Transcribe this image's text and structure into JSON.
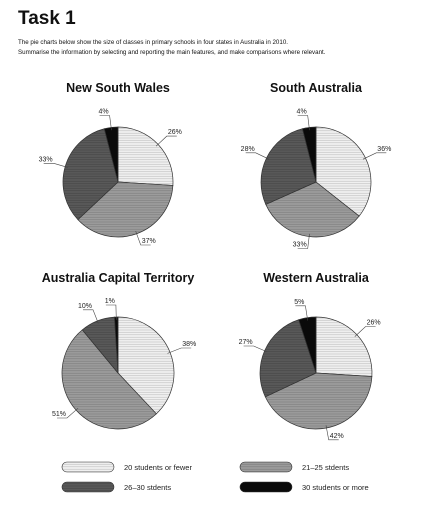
{
  "header": {
    "title": "Task 1",
    "line1": "The pie charts below show the size of classes in primary schools in four states in Australia in 2010.",
    "line2": "Summarise the information by selecting and reporting the main features, and make comparisons where relevant."
  },
  "legend": [
    {
      "label": "20 students or fewer",
      "pattern": "light-hatch"
    },
    {
      "label": "21–25 stdents",
      "pattern": "medium-hatch"
    },
    {
      "label": "26–30 stdents",
      "pattern": "dark-hatch"
    },
    {
      "label": "30 students or more",
      "pattern": "solid-black"
    }
  ],
  "colors": {
    "light": "#f1f1f1",
    "light_line": "#bdbdbd",
    "medium": "#9c9c9c",
    "medium_line": "#7a7a7a",
    "dark": "#595959",
    "dark_line": "#444444",
    "black": "#0a0a0a",
    "outline": "#333333"
  },
  "chart_data": [
    {
      "type": "pie",
      "title": "New South Wales",
      "categories": [
        "20 students or fewer",
        "21–25 stdents",
        "26–30 stdents",
        "30 students or more"
      ],
      "values": [
        26,
        37,
        33,
        4
      ],
      "labels": [
        "26%",
        "37%",
        "33%",
        "4%"
      ],
      "legend": "bottom"
    },
    {
      "type": "pie",
      "title": "South Australia",
      "categories": [
        "20 students or fewer",
        "21–25 stdents",
        "26–30 stdents",
        "30 students or more"
      ],
      "values": [
        36,
        33,
        28,
        4
      ],
      "labels": [
        "36%",
        "33%",
        "28%",
        "4%"
      ],
      "legend": "bottom"
    },
    {
      "type": "pie",
      "title": "Australia Capital Territory",
      "categories": [
        "20 students or fewer",
        "21–25 stdents",
        "26–30 stdents",
        "30 students or more"
      ],
      "values": [
        38,
        51,
        10,
        1
      ],
      "labels": [
        "38%",
        "51%",
        "10%",
        "1%"
      ],
      "legend": "bottom"
    },
    {
      "type": "pie",
      "title": "Western Australia",
      "categories": [
        "20 students or fewer",
        "21–25 stdents",
        "26–30 stdents",
        "30 students or more"
      ],
      "values": [
        26,
        42,
        27,
        5
      ],
      "labels": [
        "26%",
        "42%",
        "27%",
        "5%"
      ],
      "legend": "bottom"
    }
  ]
}
